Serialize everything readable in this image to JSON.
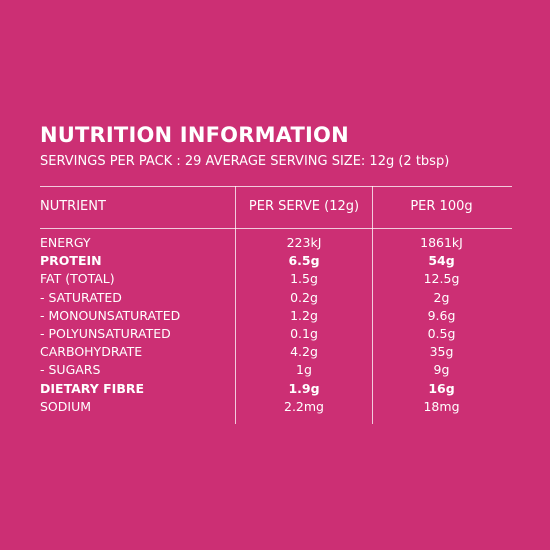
{
  "title": "NUTRITION INFORMATION",
  "subtitle": "SERVINGS PER PACK : 29 AVERAGE SERVING SIZE: 12g (2 tbsp)",
  "colors": {
    "background": "#CC2F74",
    "text": "#FFFFFF"
  },
  "table": {
    "headers": {
      "nutrient": "NUTRIENT",
      "per_serve": "PER SERVE (12g)",
      "per_100g": "PER 100g"
    },
    "rows": [
      {
        "nutrient": "ENERGY",
        "per_serve": "223kJ",
        "per_100g": "1861kJ",
        "bold": false
      },
      {
        "nutrient": "PROTEIN",
        "per_serve": "6.5g",
        "per_100g": "54g",
        "bold": true
      },
      {
        "nutrient": "FAT (TOTAL)",
        "per_serve": "1.5g",
        "per_100g": "12.5g",
        "bold": false
      },
      {
        "nutrient": "- SATURATED",
        "per_serve": "0.2g",
        "per_100g": "2g",
        "bold": false
      },
      {
        "nutrient": "- MONOUNSATURATED",
        "per_serve": "1.2g",
        "per_100g": "9.6g",
        "bold": false
      },
      {
        "nutrient": "- POLYUNSATURATED",
        "per_serve": "0.1g",
        "per_100g": "0.5g",
        "bold": false
      },
      {
        "nutrient": "CARBOHYDRATE",
        "per_serve": "4.2g",
        "per_100g": "35g",
        "bold": false
      },
      {
        "nutrient": "- SUGARS",
        "per_serve": "1g",
        "per_100g": "9g",
        "bold": false
      },
      {
        "nutrient": "DIETARY FIBRE",
        "per_serve": "1.9g",
        "per_100g": "16g",
        "bold": true
      },
      {
        "nutrient": "SODIUM",
        "per_serve": "2.2mg",
        "per_100g": "18mg",
        "bold": false
      }
    ]
  }
}
